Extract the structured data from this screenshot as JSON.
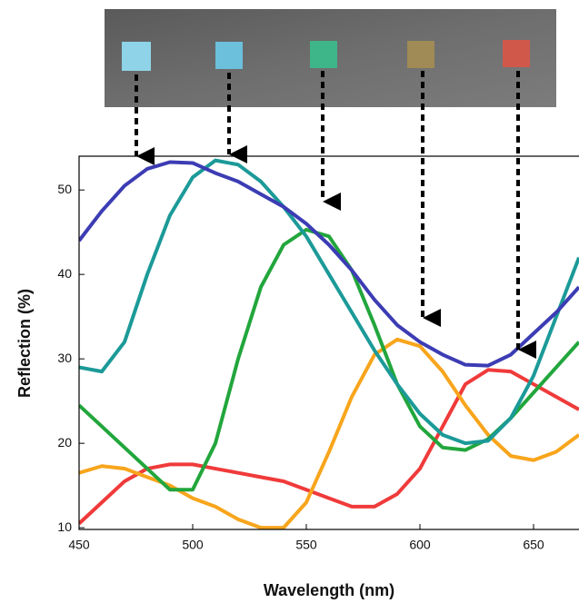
{
  "chart_data": {
    "type": "line",
    "x_label": "Wavelength (nm)",
    "y_label": "Reflection (%)",
    "x": [
      450,
      460,
      470,
      480,
      490,
      500,
      510,
      520,
      530,
      540,
      550,
      560,
      570,
      580,
      590,
      600,
      610,
      620,
      630,
      640,
      650,
      660,
      670
    ],
    "xlim": [
      450,
      670
    ],
    "xticks": [
      450,
      500,
      550,
      600,
      650
    ],
    "ylim": [
      9.8,
      54
    ],
    "yticks": [
      10,
      20,
      30,
      40,
      50
    ],
    "series": [
      {
        "color": "#f03a3a",
        "values": [
          10.5,
          13,
          15.5,
          17,
          17.5,
          17.5,
          17,
          16.5,
          16,
          15.5,
          14.5,
          13.5,
          12.5,
          12.5,
          14,
          17,
          22,
          27,
          28.7,
          28.5,
          27,
          25.5,
          24
        ]
      },
      {
        "color": "#f8a51c",
        "values": [
          16.5,
          17.3,
          17,
          16,
          15,
          13.5,
          12.5,
          11,
          10,
          10,
          13,
          19,
          25.5,
          30.5,
          32.3,
          31.5,
          28.5,
          24.5,
          21,
          18.5,
          18,
          19,
          21
        ]
      },
      {
        "color": "#22a63c",
        "values": [
          24.5,
          22,
          19.5,
          17,
          14.5,
          14.5,
          20,
          30,
          38.5,
          43.5,
          45.3,
          44.5,
          40.5,
          34,
          27,
          22,
          19.5,
          19.2,
          20.5,
          23,
          26,
          29,
          32
        ]
      },
      {
        "color": "#1b9a98",
        "values": [
          29,
          28.5,
          32,
          40,
          47,
          51.5,
          53.5,
          53,
          51,
          48,
          44.5,
          40,
          35.5,
          31,
          27,
          23.5,
          21,
          20,
          20.3,
          23,
          28,
          35,
          42
        ]
      },
      {
        "color": "#3c3cb4",
        "values": [
          44,
          47.5,
          50.5,
          52.5,
          53.3,
          53.2,
          52,
          51,
          49.5,
          48,
          46,
          43.5,
          40.5,
          37,
          34,
          32,
          30.5,
          29.3,
          29.2,
          30.5,
          33,
          35.5,
          38.5
        ]
      }
    ]
  }
}
